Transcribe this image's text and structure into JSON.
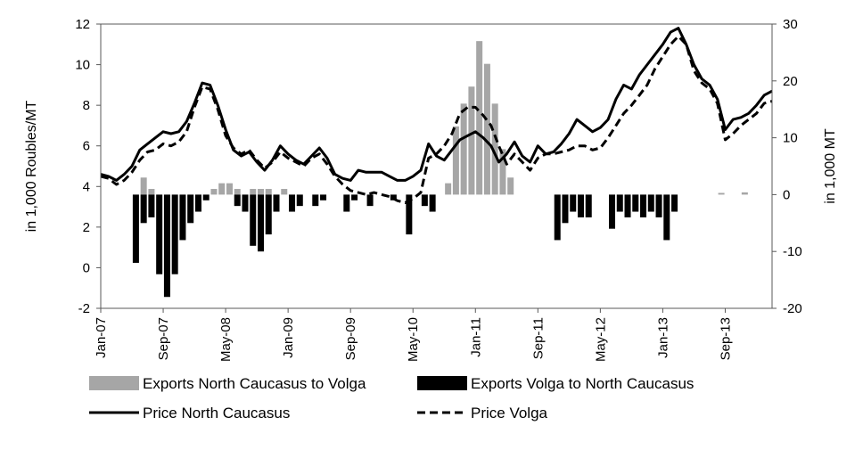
{
  "chart_data": {
    "type": "bar+line",
    "x_axis": {
      "tick_labels": [
        "Jan-07",
        "Sep-07",
        "May-08",
        "Jan-09",
        "Sep-09",
        "May-10",
        "Jan-11",
        "Sep-11",
        "May-12",
        "Jan-13",
        "Sep-13"
      ],
      "range": [
        "Jan-07",
        "Mar-14"
      ]
    },
    "y_left": {
      "label": "in 1,000 Roubles/MT",
      "min": -2,
      "max": 12,
      "ticks": [
        "-2",
        "0",
        "2",
        "4",
        "6",
        "8",
        "10",
        "12"
      ]
    },
    "y_right": {
      "label": "in 1,000 MT",
      "min": -20,
      "max": 30,
      "ticks": [
        "-20",
        "-10",
        "0",
        "10",
        "20",
        "30"
      ]
    },
    "grid": false,
    "legend_position": "bottom",
    "series": [
      {
        "name": "Exports North Caucasus to Volga",
        "kind": "bar",
        "axis": "right",
        "color": "#a6a6a6",
        "points": [
          [
            "2007-06",
            3
          ],
          [
            "2007-07",
            1
          ],
          [
            "2008-03",
            1
          ],
          [
            "2008-04",
            2
          ],
          [
            "2008-05",
            2
          ],
          [
            "2008-06",
            1
          ],
          [
            "2008-08",
            1
          ],
          [
            "2008-09",
            1
          ],
          [
            "2008-10",
            1
          ],
          [
            "2008-12",
            1
          ],
          [
            "2010-09",
            2
          ],
          [
            "2010-10",
            12
          ],
          [
            "2010-11",
            16
          ],
          [
            "2010-12",
            19
          ],
          [
            "2011-01",
            27
          ],
          [
            "2011-02",
            23
          ],
          [
            "2011-03",
            16
          ],
          [
            "2011-04",
            8
          ],
          [
            "2011-05",
            3
          ],
          [
            "2013-08",
            0.3
          ],
          [
            "2013-11",
            0.4
          ]
        ]
      },
      {
        "name": "Exports Volga to North Caucasus",
        "kind": "bar",
        "axis": "right",
        "color": "#000000",
        "points": [
          [
            "2007-05",
            -12
          ],
          [
            "2007-06",
            -5
          ],
          [
            "2007-07",
            -4
          ],
          [
            "2007-08",
            -14
          ],
          [
            "2007-09",
            -18
          ],
          [
            "2007-10",
            -14
          ],
          [
            "2007-11",
            -8
          ],
          [
            "2007-12",
            -5
          ],
          [
            "2008-01",
            -3
          ],
          [
            "2008-02",
            -1
          ],
          [
            "2008-06",
            -2
          ],
          [
            "2008-07",
            -3
          ],
          [
            "2008-08",
            -9
          ],
          [
            "2008-09",
            -10
          ],
          [
            "2008-10",
            -7
          ],
          [
            "2008-11",
            -3
          ],
          [
            "2009-01",
            -3
          ],
          [
            "2009-02",
            -2
          ],
          [
            "2009-04",
            -2
          ],
          [
            "2009-05",
            -1
          ],
          [
            "2009-08",
            -3
          ],
          [
            "2009-09",
            -1
          ],
          [
            "2009-11",
            -2
          ],
          [
            "2010-02",
            -1
          ],
          [
            "2010-04",
            -7
          ],
          [
            "2010-06",
            -2
          ],
          [
            "2010-07",
            -3
          ],
          [
            "2011-11",
            -8
          ],
          [
            "2011-12",
            -5
          ],
          [
            "2012-01",
            -3
          ],
          [
            "2012-02",
            -4
          ],
          [
            "2012-03",
            -4
          ],
          [
            "2012-06",
            -6
          ],
          [
            "2012-07",
            -3
          ],
          [
            "2012-08",
            -4
          ],
          [
            "2012-09",
            -3
          ],
          [
            "2012-10",
            -4
          ],
          [
            "2012-11",
            -3
          ],
          [
            "2012-12",
            -4
          ],
          [
            "2013-01",
            -8
          ],
          [
            "2013-02",
            -3
          ]
        ]
      },
      {
        "name": "Price North Caucasus",
        "kind": "line",
        "axis": "left",
        "style": "solid",
        "color": "#000000",
        "points": [
          [
            "2007-01",
            4.6
          ],
          [
            "2007-02",
            4.5
          ],
          [
            "2007-03",
            4.3
          ],
          [
            "2007-04",
            4.6
          ],
          [
            "2007-05",
            5.0
          ],
          [
            "2007-06",
            5.8
          ],
          [
            "2007-07",
            6.1
          ],
          [
            "2007-08",
            6.4
          ],
          [
            "2007-09",
            6.7
          ],
          [
            "2007-10",
            6.6
          ],
          [
            "2007-11",
            6.7
          ],
          [
            "2007-12",
            7.2
          ],
          [
            "2008-01",
            8.1
          ],
          [
            "2008-02",
            9.1
          ],
          [
            "2008-03",
            9.0
          ],
          [
            "2008-04",
            8.0
          ],
          [
            "2008-05",
            6.8
          ],
          [
            "2008-06",
            5.8
          ],
          [
            "2008-07",
            5.5
          ],
          [
            "2008-08",
            5.7
          ],
          [
            "2008-09",
            5.2
          ],
          [
            "2008-10",
            4.8
          ],
          [
            "2008-11",
            5.3
          ],
          [
            "2008-12",
            6.0
          ],
          [
            "2009-01",
            5.6
          ],
          [
            "2009-02",
            5.3
          ],
          [
            "2009-03",
            5.1
          ],
          [
            "2009-04",
            5.5
          ],
          [
            "2009-05",
            5.9
          ],
          [
            "2009-06",
            5.4
          ],
          [
            "2009-07",
            4.6
          ],
          [
            "2009-08",
            4.4
          ],
          [
            "2009-09",
            4.3
          ],
          [
            "2009-10",
            4.8
          ],
          [
            "2009-11",
            4.7
          ],
          [
            "2009-12",
            4.7
          ],
          [
            "2010-01",
            4.7
          ],
          [
            "2010-02",
            4.5
          ],
          [
            "2010-03",
            4.3
          ],
          [
            "2010-04",
            4.3
          ],
          [
            "2010-05",
            4.5
          ],
          [
            "2010-06",
            4.8
          ],
          [
            "2010-07",
            6.1
          ],
          [
            "2010-08",
            5.5
          ],
          [
            "2010-09",
            5.3
          ],
          [
            "2010-10",
            5.8
          ],
          [
            "2010-11",
            6.3
          ],
          [
            "2010-12",
            6.5
          ],
          [
            "2011-01",
            6.7
          ],
          [
            "2011-02",
            6.4
          ],
          [
            "2011-03",
            6.0
          ],
          [
            "2011-04",
            5.2
          ],
          [
            "2011-05",
            5.6
          ],
          [
            "2011-06",
            6.2
          ],
          [
            "2011-07",
            5.5
          ],
          [
            "2011-08",
            5.2
          ],
          [
            "2011-09",
            6.0
          ],
          [
            "2011-10",
            5.6
          ],
          [
            "2011-11",
            5.7
          ],
          [
            "2011-12",
            6.1
          ],
          [
            "2012-01",
            6.6
          ],
          [
            "2012-02",
            7.3
          ],
          [
            "2012-03",
            7.0
          ],
          [
            "2012-04",
            6.7
          ],
          [
            "2012-05",
            6.9
          ],
          [
            "2012-06",
            7.3
          ],
          [
            "2012-07",
            8.3
          ],
          [
            "2012-08",
            9.0
          ],
          [
            "2012-09",
            8.8
          ],
          [
            "2012-10",
            9.5
          ],
          [
            "2012-11",
            10.0
          ],
          [
            "2012-12",
            10.5
          ],
          [
            "2013-01",
            11.0
          ],
          [
            "2013-02",
            11.6
          ],
          [
            "2013-03",
            11.8
          ],
          [
            "2013-04",
            11.0
          ],
          [
            "2013-05",
            10.0
          ],
          [
            "2013-06",
            9.3
          ],
          [
            "2013-07",
            9.0
          ],
          [
            "2013-08",
            8.3
          ],
          [
            "2013-09",
            6.8
          ],
          [
            "2013-10",
            7.3
          ],
          [
            "2013-11",
            7.4
          ],
          [
            "2013-12",
            7.6
          ],
          [
            "2014-01",
            8.0
          ],
          [
            "2014-02",
            8.5
          ],
          [
            "2014-03",
            8.7
          ]
        ]
      },
      {
        "name": "Price Volga",
        "kind": "line",
        "axis": "left",
        "style": "dashed",
        "color": "#000000",
        "points": [
          [
            "2007-01",
            4.5
          ],
          [
            "2007-02",
            4.4
          ],
          [
            "2007-03",
            4.1
          ],
          [
            "2007-04",
            4.3
          ],
          [
            "2007-05",
            4.7
          ],
          [
            "2007-06",
            5.3
          ],
          [
            "2007-07",
            5.7
          ],
          [
            "2007-08",
            5.8
          ],
          [
            "2007-09",
            6.1
          ],
          [
            "2007-10",
            6.0
          ],
          [
            "2007-11",
            6.2
          ],
          [
            "2007-12",
            6.7
          ],
          [
            "2008-01",
            7.9
          ],
          [
            "2008-02",
            8.9
          ],
          [
            "2008-03",
            8.8
          ],
          [
            "2008-04",
            7.8
          ],
          [
            "2008-05",
            6.5
          ],
          [
            "2008-06",
            5.9
          ],
          [
            "2008-07",
            5.6
          ],
          [
            "2008-08",
            5.8
          ],
          [
            "2008-09",
            5.3
          ],
          [
            "2008-10",
            4.9
          ],
          [
            "2008-11",
            5.2
          ],
          [
            "2008-12",
            5.7
          ],
          [
            "2009-01",
            5.4
          ],
          [
            "2009-02",
            5.2
          ],
          [
            "2009-03",
            5.0
          ],
          [
            "2009-04",
            5.4
          ],
          [
            "2009-05",
            5.6
          ],
          [
            "2009-06",
            5.1
          ],
          [
            "2009-07",
            4.5
          ],
          [
            "2009-08",
            4.1
          ],
          [
            "2009-09",
            3.8
          ],
          [
            "2009-10",
            3.7
          ],
          [
            "2009-11",
            3.6
          ],
          [
            "2009-12",
            3.7
          ],
          [
            "2010-01",
            3.6
          ],
          [
            "2010-02",
            3.5
          ],
          [
            "2010-03",
            3.3
          ],
          [
            "2010-04",
            3.2
          ],
          [
            "2010-05",
            3.4
          ],
          [
            "2010-06",
            3.7
          ],
          [
            "2010-07",
            5.4
          ],
          [
            "2010-08",
            5.6
          ],
          [
            "2010-09",
            6.0
          ],
          [
            "2010-10",
            6.6
          ],
          [
            "2010-11",
            7.6
          ],
          [
            "2010-12",
            7.9
          ],
          [
            "2011-01",
            7.9
          ],
          [
            "2011-02",
            7.5
          ],
          [
            "2011-03",
            7.0
          ],
          [
            "2011-04",
            6.0
          ],
          [
            "2011-05",
            5.1
          ],
          [
            "2011-06",
            5.6
          ],
          [
            "2011-07",
            5.2
          ],
          [
            "2011-08",
            4.8
          ],
          [
            "2011-09",
            5.4
          ],
          [
            "2011-10",
            5.6
          ],
          [
            "2011-11",
            5.6
          ],
          [
            "2011-12",
            5.7
          ],
          [
            "2012-01",
            5.8
          ],
          [
            "2012-02",
            6.0
          ],
          [
            "2012-03",
            6.0
          ],
          [
            "2012-04",
            5.8
          ],
          [
            "2012-05",
            5.9
          ],
          [
            "2012-06",
            6.4
          ],
          [
            "2012-07",
            7.0
          ],
          [
            "2012-08",
            7.6
          ],
          [
            "2012-09",
            8.0
          ],
          [
            "2012-10",
            8.5
          ],
          [
            "2012-11",
            9.0
          ],
          [
            "2012-12",
            9.8
          ],
          [
            "2013-01",
            10.4
          ],
          [
            "2013-02",
            11.0
          ],
          [
            "2013-03",
            11.4
          ],
          [
            "2013-04",
            11.0
          ],
          [
            "2013-05",
            9.7
          ],
          [
            "2013-06",
            9.1
          ],
          [
            "2013-07",
            8.8
          ],
          [
            "2013-08",
            8.1
          ],
          [
            "2013-09",
            6.3
          ],
          [
            "2013-10",
            6.6
          ],
          [
            "2013-11",
            7.0
          ],
          [
            "2013-12",
            7.3
          ],
          [
            "2014-01",
            7.6
          ],
          [
            "2014-02",
            8.1
          ],
          [
            "2014-03",
            8.2
          ]
        ]
      }
    ]
  }
}
